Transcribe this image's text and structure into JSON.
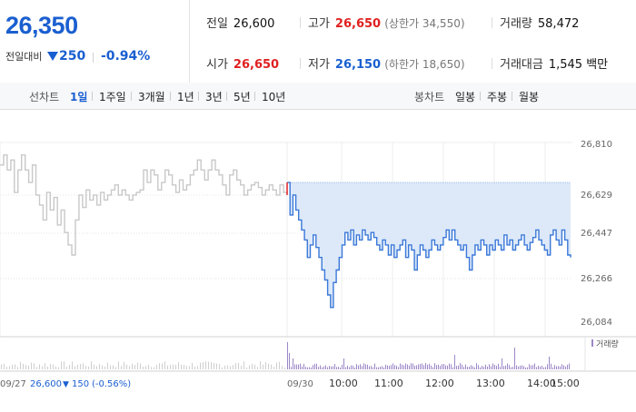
{
  "summary": {
    "price": "26,350",
    "change_label": "전일대비",
    "change": "250",
    "change_pct": "-0.94%"
  },
  "stats": {
    "prev_close": {
      "label": "전일",
      "value": "26,600"
    },
    "high": {
      "label": "고가",
      "value": "26,650",
      "limit_label": "(상한가 34,550)"
    },
    "volume": {
      "label": "거래량",
      "value": "58,472"
    },
    "open": {
      "label": "시가",
      "value": "26,650"
    },
    "low": {
      "label": "저가",
      "value": "26,150",
      "limit_label": "(하한가 18,650)"
    },
    "amount": {
      "label": "거래대금",
      "value": "1,545 백만"
    }
  },
  "toolbar": {
    "line_label": "선차트",
    "periods": [
      "1일",
      "1주일",
      "3개월",
      "1년",
      "3년",
      "5년",
      "10년"
    ],
    "active_period": "1일",
    "candle_label": "봉차트",
    "candles": [
      "일봉",
      "주봉",
      "월봉"
    ]
  },
  "colors": {
    "up": "#e02020",
    "down": "#1a5fd0",
    "prev_line": "#c8c8c8",
    "today_line": "#3a78d8",
    "fill": "#dde9f9",
    "volume_prev": "#cfcfcf",
    "volume_today": "#9c87c8"
  },
  "chart_data": {
    "type": "line",
    "y_ticks": [
      "26,810",
      "26,629",
      "26,447",
      "26,266",
      "26,084"
    ],
    "ylim": [
      26084,
      26810
    ],
    "x_ticks": [
      "09/30",
      "10:00",
      "11:00",
      "12:00",
      "13:00",
      "14:00",
      "15:00"
    ],
    "prev_day_label": "09/27",
    "prev_day_close": "26,600",
    "prev_day_change": "150",
    "prev_day_pct": "(-0.56%)",
    "volume_legend": "거래량",
    "series": [
      {
        "name": "09/27",
        "values": [
          26720,
          26760,
          26700,
          26740,
          26610,
          26700,
          26760,
          26700,
          26650,
          26720,
          26600,
          26560,
          26500,
          26610,
          26540,
          26590,
          26480,
          26540,
          26450,
          26400,
          26360,
          26500,
          26600,
          26550,
          26620,
          26580,
          26600,
          26560,
          26610,
          26580,
          26600,
          26620,
          26640,
          26600,
          26620,
          26600,
          26580,
          26600,
          26610,
          26620,
          26700,
          26650,
          26700,
          26680,
          26620,
          26650,
          26700,
          26680,
          26640,
          26610,
          26660,
          26620,
          26640,
          26680,
          26700,
          26740,
          26700,
          26660,
          26700,
          26740,
          26700,
          26680,
          26640,
          26600,
          26680,
          26700,
          26660,
          26640,
          26600,
          26620,
          26640,
          26650,
          26630,
          26600,
          26620,
          26640,
          26620,
          26600,
          26640,
          26610,
          26600
        ]
      },
      {
        "name": "09/30",
        "values": [
          26650,
          26520,
          26600,
          26540,
          26500,
          26460,
          26420,
          26350,
          26400,
          26440,
          26390,
          26350,
          26300,
          26260,
          26200,
          26150,
          26250,
          26300,
          26350,
          26400,
          26450,
          26420,
          26460,
          26400,
          26440,
          26420,
          26460,
          26440,
          26420,
          26450,
          26430,
          26400,
          26380,
          26420,
          26400,
          26360,
          26400,
          26350,
          26380,
          26400,
          26420,
          26350,
          26400,
          26380,
          26300,
          26360,
          26400,
          26380,
          26350,
          26380,
          26420,
          26400,
          26380,
          26400,
          26430,
          26460,
          26420,
          26460,
          26420,
          26400,
          26380,
          26400,
          26350,
          26300,
          26360,
          26400,
          26380,
          26420,
          26400,
          26360,
          26400,
          26380,
          26420,
          26400,
          26380,
          26440,
          26400,
          26420,
          26380,
          26400,
          26420,
          26440,
          26400,
          26380,
          26410,
          26430,
          26460,
          26420,
          26400,
          26380,
          26360,
          26440,
          26460,
          26420,
          26400,
          26460,
          26420,
          26360,
          26350
        ]
      }
    ]
  }
}
